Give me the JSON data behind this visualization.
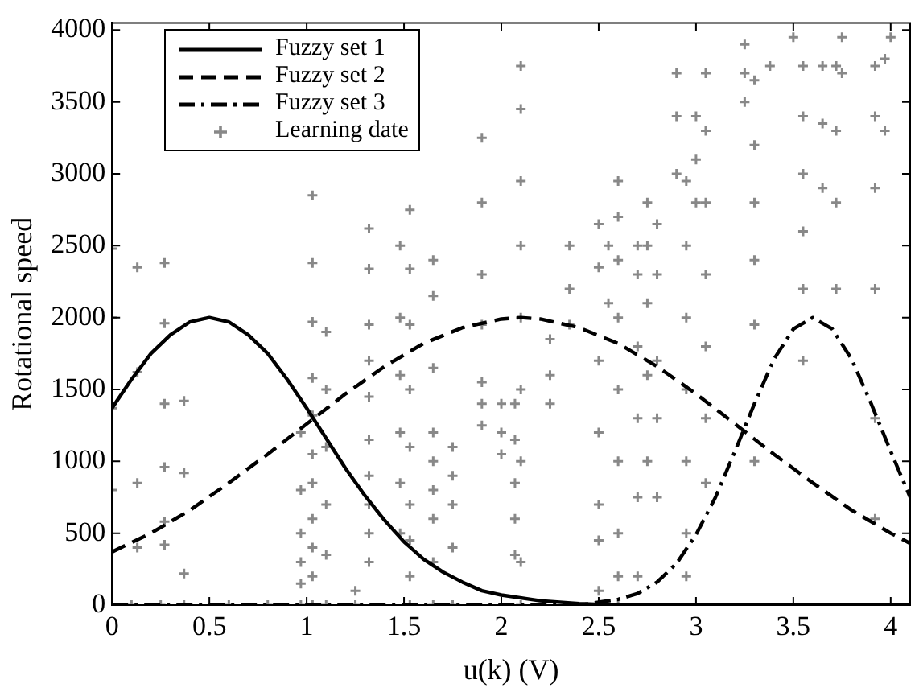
{
  "chart_data": {
    "type": "line",
    "xlabel": "u(k) (V)",
    "ylabel": "Rotational speed",
    "xlim": [
      0,
      4.1
    ],
    "ylim": [
      0,
      4050
    ],
    "xticks": [
      0,
      0.5,
      1,
      1.5,
      2,
      2.5,
      3,
      3.5,
      4
    ],
    "yticks": [
      0,
      500,
      1000,
      1500,
      2000,
      2500,
      3000,
      3500,
      4000
    ],
    "grid": false,
    "legend": "top left",
    "series": [
      {
        "name": "Fuzzy set 1",
        "color": "#000000",
        "line_style": "solid",
        "marker": "none",
        "x": [
          0,
          0.1,
          0.2,
          0.3,
          0.4,
          0.5,
          0.6,
          0.7,
          0.8,
          0.9,
          1.0,
          1.1,
          1.2,
          1.3,
          1.4,
          1.5,
          1.6,
          1.7,
          1.8,
          1.9,
          2.0,
          2.2,
          2.4,
          2.6,
          3.0,
          3.5,
          4.1
        ],
        "values": [
          1370,
          1570,
          1750,
          1880,
          1970,
          2000,
          1970,
          1880,
          1750,
          1570,
          1370,
          1160,
          950,
          760,
          590,
          440,
          320,
          230,
          160,
          100,
          70,
          30,
          10,
          0,
          0,
          0,
          0
        ]
      },
      {
        "name": "Fuzzy set 2",
        "color": "#000000",
        "line_style": "dashed",
        "marker": "none",
        "x": [
          0,
          0.2,
          0.4,
          0.6,
          0.8,
          1.0,
          1.2,
          1.4,
          1.6,
          1.8,
          2.0,
          2.1,
          2.2,
          2.4,
          2.6,
          2.8,
          3.0,
          3.2,
          3.4,
          3.6,
          3.8,
          4.0,
          4.1
        ],
        "values": [
          370,
          500,
          660,
          850,
          1050,
          1260,
          1470,
          1660,
          1820,
          1930,
          1990,
          2000,
          1990,
          1930,
          1820,
          1660,
          1470,
          1260,
          1050,
          850,
          660,
          500,
          430
        ]
      },
      {
        "name": "Fuzzy set 3",
        "color": "#000000",
        "line_style": "dashdot",
        "marker": "none",
        "x": [
          0,
          2.4,
          2.5,
          2.6,
          2.7,
          2.8,
          2.9,
          3.0,
          3.1,
          3.2,
          3.3,
          3.4,
          3.5,
          3.6,
          3.7,
          3.8,
          3.9,
          4.0,
          4.1
        ],
        "values": [
          0,
          0,
          20,
          40,
          80,
          160,
          290,
          490,
          750,
          1070,
          1400,
          1710,
          1920,
          2000,
          1920,
          1710,
          1400,
          1070,
          750
        ]
      },
      {
        "name": "Learning date",
        "type": "scatter",
        "color": "#888888",
        "marker": "cross",
        "x": [
          0,
          0,
          0,
          0,
          0,
          0.13,
          0.13,
          0.13,
          0.13,
          0.1,
          0.27,
          0.27,
          0.27,
          0.27,
          0.27,
          0.27,
          0.25,
          0.37,
          0.37,
          0.37,
          0.37,
          0.6,
          0.8,
          0.97,
          0.97,
          0.97,
          0.97,
          0.97,
          0.97,
          1.03,
          1.03,
          1.03,
          1.03,
          1.03,
          1.03,
          1.03,
          1.03,
          1.03,
          1.03,
          1.03,
          1.1,
          1.1,
          1.1,
          1.1,
          1.1,
          1.1,
          1.25,
          1.25,
          1.32,
          1.32,
          1.32,
          1.32,
          1.32,
          1.32,
          1.32,
          1.32,
          1.32,
          1.32,
          1.48,
          1.48,
          1.48,
          1.48,
          1.48,
          1.48,
          1.53,
          1.53,
          1.53,
          1.53,
          1.53,
          1.53,
          1.53,
          1.53,
          1.53,
          1.65,
          1.65,
          1.65,
          1.65,
          1.65,
          1.65,
          1.65,
          1.65,
          1.65,
          1.75,
          1.75,
          1.75,
          1.75,
          1.75,
          1.9,
          1.9,
          1.9,
          1.9,
          1.9,
          1.9,
          1.9,
          2.0,
          2.0,
          2.0,
          2.07,
          2.07,
          2.07,
          2.07,
          2.07,
          2.1,
          2.1,
          2.1,
          2.1,
          2.1,
          2.1,
          2.1,
          2.1,
          2.1,
          2.25,
          2.25,
          2.25,
          2.35,
          2.35,
          2.35,
          2.5,
          2.5,
          2.5,
          2.5,
          2.5,
          2.5,
          2.5,
          2.55,
          2.55,
          2.6,
          2.6,
          2.6,
          2.6,
          2.6,
          2.6,
          2.6,
          2.6,
          2.6,
          2.7,
          2.7,
          2.7,
          2.7,
          2.7,
          2.7,
          2.75,
          2.75,
          2.75,
          2.75,
          2.75,
          2.8,
          2.8,
          2.8,
          2.8,
          2.8,
          2.9,
          2.9,
          2.9,
          2.95,
          2.95,
          2.95,
          2.95,
          2.95,
          2.95,
          2.95,
          3.0,
          3.0,
          3.0,
          3.05,
          3.05,
          3.05,
          3.05,
          3.05,
          3.05,
          3.05,
          3.25,
          3.25,
          3.25,
          3.3,
          3.3,
          3.3,
          3.3,
          3.3,
          3.3,
          3.38,
          3.5,
          3.55,
          3.55,
          3.55,
          3.55,
          3.55,
          3.55,
          3.65,
          3.65,
          3.65,
          3.72,
          3.72,
          3.72,
          3.72,
          3.75,
          3.75,
          3.92,
          3.92,
          3.92,
          3.92,
          3.92,
          3.92,
          3.97,
          3.97,
          4.0
        ],
        "values": [
          2480,
          2000,
          1370,
          800,
          0,
          2350,
          1620,
          850,
          400,
          0,
          2380,
          1960,
          1400,
          960,
          580,
          420,
          0,
          1420,
          920,
          220,
          0,
          0,
          0,
          1200,
          800,
          500,
          300,
          150,
          0,
          2850,
          2380,
          1970,
          1580,
          1320,
          1050,
          850,
          600,
          400,
          200,
          0,
          1900,
          1500,
          1100,
          700,
          350,
          0,
          100,
          0,
          2620,
          2340,
          1950,
          1700,
          1450,
          1150,
          900,
          700,
          500,
          300,
          2500,
          2000,
          1600,
          1200,
          850,
          500,
          2750,
          2340,
          1950,
          1500,
          1100,
          700,
          450,
          200,
          0,
          2400,
          2150,
          1650,
          1200,
          1000,
          800,
          600,
          300,
          0,
          1100,
          900,
          700,
          400,
          0,
          3250,
          2800,
          2300,
          1950,
          1550,
          1400,
          1250,
          1400,
          1200,
          1050,
          1400,
          1150,
          850,
          600,
          350,
          3750,
          3450,
          2950,
          2500,
          2000,
          1500,
          1000,
          300,
          0,
          1850,
          1600,
          1400,
          2500,
          2200,
          1950,
          2650,
          2350,
          1700,
          1200,
          700,
          450,
          100,
          2500,
          2100,
          2950,
          2700,
          2400,
          2000,
          1500,
          1000,
          500,
          200,
          0,
          2500,
          2300,
          1800,
          1300,
          750,
          200,
          2800,
          2500,
          2100,
          1600,
          1000,
          2650,
          2300,
          1700,
          1300,
          750,
          3700,
          3400,
          3000,
          2950,
          2500,
          2000,
          1500,
          1000,
          500,
          200,
          3400,
          3100,
          2800,
          3700,
          3300,
          2800,
          2300,
          1800,
          1300,
          850,
          3900,
          3700,
          3500,
          3650,
          3200,
          2800,
          2400,
          1950,
          1000,
          3750,
          3950,
          3750,
          3400,
          3000,
          2600,
          2200,
          1700,
          3750,
          3350,
          2900,
          3750,
          3300,
          2800,
          2200,
          3950,
          3700,
          3750,
          3400,
          2900,
          2200,
          1300,
          600,
          3800,
          3300,
          3950
        ]
      }
    ]
  }
}
